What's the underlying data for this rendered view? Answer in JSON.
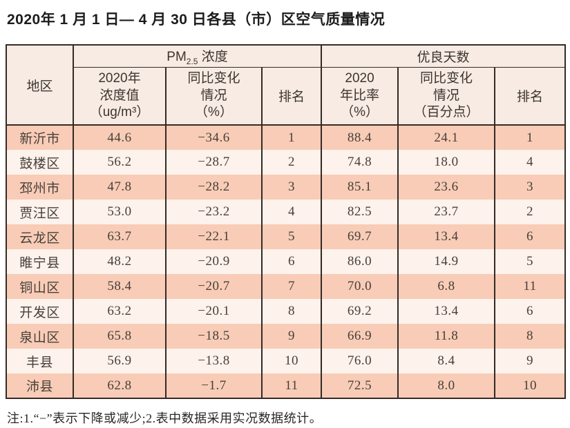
{
  "page_title": "2020年 1 月 1 日— 4 月 30 日各县（市）区空气质量情况",
  "table": {
    "region_header": "地区",
    "pm_group": {
      "prefix": "PM",
      "subscript": "2.5",
      "suffix": " 浓度"
    },
    "good_days_group": "优良天数",
    "sub_headers": {
      "pm_value": "2020年\n浓度值\n（ug/m³）",
      "pm_change": "同比变化\n情况\n（%）",
      "pm_rank": "排名",
      "good_ratio": "2020\n年比率\n（%）",
      "good_change": "同比变化\n情况\n（百分点）",
      "good_rank": "排名"
    },
    "row_cell_names": [
      "region-cell",
      "pm-value-cell",
      "pm-change-cell",
      "pm-rank-cell",
      "good-ratio-cell",
      "good-change-cell",
      "good-rank-cell"
    ],
    "rows": [
      [
        "新沂市",
        "44.6",
        "−34.6",
        "1",
        "88.4",
        "24.1",
        "1"
      ],
      [
        "鼓楼区",
        "56.2",
        "−28.7",
        "2",
        "74.8",
        "18.0",
        "4"
      ],
      [
        "邳州市",
        "47.8",
        "−28.2",
        "3",
        "85.1",
        "23.6",
        "3"
      ],
      [
        "贾汪区",
        "53.0",
        "−23.2",
        "4",
        "82.5",
        "23.7",
        "2"
      ],
      [
        "云龙区",
        "63.7",
        "−22.1",
        "5",
        "69.7",
        "13.4",
        "6"
      ],
      [
        "睢宁县",
        "48.2",
        "−20.9",
        "6",
        "86.0",
        "14.9",
        "5"
      ],
      [
        "铜山区",
        "58.4",
        "−20.7",
        "7",
        "70.0",
        "6.8",
        "11"
      ],
      [
        "开发区",
        "63.2",
        "−20.1",
        "8",
        "69.2",
        "13.4",
        "6"
      ],
      [
        "泉山区",
        "65.8",
        "−18.5",
        "9",
        "66.9",
        "11.8",
        "8"
      ],
      [
        "丰县",
        "56.9",
        "−13.8",
        "10",
        "76.0",
        "8.4",
        "9"
      ],
      [
        "沛县",
        "62.8",
        "−1.7",
        "11",
        "72.5",
        "8.0",
        "10"
      ]
    ]
  },
  "footnote": "注:1.“−”表示下降或减少;2.表中数据采用实况数据统计。",
  "colors": {
    "row_dark": "#f8ccb6",
    "row_light": "#fdf2ec",
    "header_bg": "#f7ebe3",
    "border": "#332a26"
  }
}
